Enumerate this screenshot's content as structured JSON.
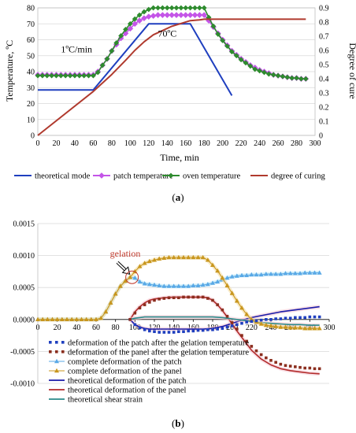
{
  "chart_data": [
    {
      "panel_label_pre": "(",
      "panel_label_letter": "a",
      "panel_label_post": ")",
      "type": "line",
      "xlabel": "Time, min",
      "ylabel": "Temperature, ºC",
      "y2label": "Degree of cure",
      "xlim": [
        0,
        300
      ],
      "ylim": [
        0,
        80
      ],
      "y2lim": [
        0,
        0.9
      ],
      "xticks": [
        0,
        20,
        40,
        60,
        80,
        100,
        120,
        140,
        160,
        180,
        200,
        220,
        240,
        260,
        280,
        300
      ],
      "yticks": [
        0,
        10,
        20,
        30,
        40,
        50,
        60,
        70,
        80
      ],
      "y2ticks": [
        0,
        0.1,
        0.2,
        0.3,
        0.4,
        0.5,
        0.6,
        0.7,
        0.8,
        0.9
      ],
      "grid": "horizontal",
      "legend_position": "bottom",
      "annotations": [
        {
          "text": "1ºC/min",
          "x": 25,
          "y": 52
        },
        {
          "text": "70ºC",
          "x": 130,
          "y": 62
        }
      ],
      "series": [
        {
          "name": "theoretical mode",
          "axis": "left",
          "color": "#1f3fbf",
          "marker": "none",
          "x": [
            0,
            60,
            120,
            165,
            210
          ],
          "y": [
            28.5,
            28.5,
            70,
            70,
            25
          ]
        },
        {
          "name": "patch temperature",
          "axis": "left",
          "color": "#c455e8",
          "marker": "diamond",
          "x": [
            0,
            5,
            10,
            15,
            20,
            25,
            30,
            35,
            40,
            45,
            50,
            55,
            60,
            65,
            70,
            75,
            80,
            85,
            90,
            95,
            100,
            105,
            110,
            115,
            120,
            125,
            130,
            135,
            140,
            145,
            150,
            155,
            160,
            165,
            170,
            175,
            180,
            185,
            190,
            195,
            200,
            205,
            210,
            215,
            220,
            225,
            230,
            235,
            240,
            245,
            250,
            255,
            260,
            265,
            270,
            275,
            280,
            285,
            290
          ],
          "y": [
            38,
            38,
            38,
            38,
            38,
            38,
            38,
            38,
            38,
            38,
            38,
            38,
            38,
            40,
            44,
            48,
            53,
            57,
            61,
            64,
            67,
            70,
            72,
            73.5,
            74.5,
            75,
            75.5,
            75.5,
            75.5,
            75.5,
            75.5,
            75.5,
            75.5,
            75.5,
            75.5,
            75.5,
            75.5,
            72,
            68,
            64,
            60,
            56.5,
            53,
            50.5,
            48,
            46,
            44,
            42.5,
            41,
            40,
            39,
            38,
            37.5,
            37,
            36.5,
            36,
            36,
            35.5,
            35.5
          ]
        },
        {
          "name": "oven temperature",
          "axis": "left",
          "color": "#2e8b2e",
          "marker": "circle",
          "x": [
            0,
            5,
            10,
            15,
            20,
            25,
            30,
            35,
            40,
            45,
            50,
            55,
            60,
            65,
            70,
            75,
            80,
            85,
            90,
            95,
            100,
            105,
            110,
            115,
            120,
            125,
            130,
            135,
            140,
            145,
            150,
            155,
            160,
            165,
            170,
            175,
            180,
            185,
            190,
            195,
            200,
            205,
            210,
            215,
            220,
            225,
            230,
            235,
            240,
            245,
            250,
            255,
            260,
            265,
            270,
            275,
            280,
            285,
            290
          ],
          "y": [
            37.5,
            37.5,
            37.5,
            37.5,
            37.5,
            37.5,
            37.5,
            37.5,
            37.5,
            37.5,
            37.5,
            37.5,
            37.5,
            39.5,
            44,
            48,
            53,
            58,
            62.5,
            66.5,
            70,
            73,
            75.5,
            77.5,
            79,
            80,
            80,
            80,
            80,
            80,
            80,
            80,
            80,
            80,
            80,
            80,
            80,
            74,
            68.5,
            63.5,
            59.5,
            56,
            52.5,
            50,
            47.5,
            45.5,
            43.5,
            41.5,
            40.5,
            39.5,
            38.5,
            38,
            37.5,
            37,
            36.5,
            36,
            36,
            35.5,
            35.5
          ]
        },
        {
          "name": "degree of curing",
          "axis": "right",
          "color": "#b03a2e",
          "marker": "none",
          "x": [
            0,
            60,
            80,
            95,
            105,
            115,
            125,
            135,
            145,
            155,
            165,
            175,
            180,
            240,
            290
          ],
          "y": [
            0,
            0.31,
            0.43,
            0.53,
            0.6,
            0.66,
            0.71,
            0.74,
            0.77,
            0.79,
            0.81,
            0.815,
            0.82,
            0.82,
            0.82
          ]
        }
      ]
    },
    {
      "panel_label_pre": "(",
      "panel_label_letter": "b",
      "panel_label_post": ")",
      "type": "line",
      "xlabel": "",
      "ylabel": "",
      "xlim": [
        0,
        300
      ],
      "ylim": [
        -0.001,
        0.0015
      ],
      "xticks": [
        0,
        20,
        40,
        60,
        80,
        100,
        120,
        140,
        160,
        180,
        200,
        220,
        240,
        260,
        280,
        300
      ],
      "yticks": [
        "-0.0010",
        "-0.0005",
        "0.0000",
        "0.0005",
        "0.0010",
        "0.0015"
      ],
      "ytick_values": [
        -0.001,
        -0.0005,
        0,
        0.0005,
        0.001,
        0.0015
      ],
      "grid": "horizontal",
      "legend_position": "bottom",
      "annotations": [
        {
          "text": "gelation",
          "x": 90,
          "y": 0.00098,
          "color": "#c0392b"
        }
      ],
      "series": [
        {
          "name": "deformation of the patch after the gelation temperature",
          "color": "#1f3fbf",
          "marker": "square",
          "x": [
            95,
            100,
            105,
            110,
            115,
            120,
            125,
            130,
            135,
            140,
            145,
            150,
            155,
            160,
            165,
            170,
            175,
            180,
            185,
            190,
            195,
            200,
            205,
            210,
            215,
            220,
            225,
            230,
            235,
            240,
            245,
            250,
            255,
            260,
            265,
            270,
            275,
            280,
            285,
            290
          ],
          "y": [
            0,
            -8e-05,
            -0.00013,
            -0.00016,
            -0.00018,
            -0.00019,
            -0.0002,
            -0.0002,
            -0.0002,
            -0.0002,
            -0.00019,
            -0.00019,
            -0.00018,
            -0.00018,
            -0.00017,
            -0.00017,
            -0.00016,
            -0.00016,
            -0.00015,
            -0.00014,
            -0.00012,
            -0.0001,
            -8e-05,
            -6e-05,
            -4e-05,
            -3e-05,
            -2e-05,
            -1e-05,
            0,
            0,
            1e-05,
            1e-05,
            2e-05,
            2e-05,
            3e-05,
            3e-05,
            3e-05,
            4e-05,
            4e-05,
            4e-05
          ]
        },
        {
          "name": "deformation of the panel after the gelation temperature",
          "color": "#8b2e1e",
          "marker": "square",
          "x": [
            95,
            100,
            105,
            110,
            115,
            120,
            125,
            130,
            135,
            140,
            145,
            150,
            155,
            160,
            165,
            170,
            175,
            180,
            185,
            190,
            195,
            200,
            205,
            210,
            215,
            220,
            225,
            230,
            235,
            240,
            245,
            250,
            255,
            260,
            265,
            270,
            275,
            280,
            285,
            290
          ],
          "y": [
            0,
            0.0001,
            0.00018,
            0.00023,
            0.00027,
            0.0003,
            0.00032,
            0.00033,
            0.00034,
            0.00034,
            0.00034,
            0.00035,
            0.00035,
            0.00035,
            0.00035,
            0.00035,
            0.00033,
            0.0003,
            0.00023,
            0.00015,
            5e-05,
            -5e-05,
            -0.00015,
            -0.00025,
            -0.00034,
            -0.00042,
            -0.00049,
            -0.00055,
            -0.0006,
            -0.00064,
            -0.00067,
            -0.0007,
            -0.00072,
            -0.00073,
            -0.00074,
            -0.00075,
            -0.00076,
            -0.00076,
            -0.00077,
            -0.00077
          ]
        },
        {
          "name": "complete deformation of the patch",
          "color": "#5aa9e6",
          "marker": "triangle",
          "x": [
            0,
            5,
            10,
            15,
            20,
            25,
            30,
            35,
            40,
            45,
            50,
            55,
            60,
            65,
            70,
            75,
            80,
            85,
            90,
            95,
            100,
            105,
            110,
            115,
            120,
            125,
            130,
            135,
            140,
            145,
            150,
            155,
            160,
            165,
            170,
            175,
            180,
            185,
            190,
            195,
            200,
            205,
            210,
            215,
            220,
            225,
            230,
            235,
            240,
            245,
            250,
            255,
            260,
            265,
            270,
            275,
            280,
            285,
            290
          ],
          "y": [
            0,
            0,
            0,
            0,
            0,
            0,
            0,
            0,
            0,
            0,
            0,
            0,
            0,
            2e-05,
            0.00012,
            0.00026,
            0.0004,
            0.00052,
            0.0006,
            0.00066,
            0.00065,
            0.00059,
            0.00056,
            0.00055,
            0.00054,
            0.00053,
            0.00052,
            0.00052,
            0.00052,
            0.00052,
            0.00052,
            0.00052,
            0.00053,
            0.00053,
            0.00054,
            0.00055,
            0.00057,
            0.00059,
            0.00062,
            0.00065,
            0.00067,
            0.00068,
            0.00069,
            0.00069,
            0.0007,
            0.0007,
            0.0007,
            0.00071,
            0.00071,
            0.00071,
            0.00071,
            0.00072,
            0.00072,
            0.00072,
            0.00072,
            0.00073,
            0.00073,
            0.00073,
            0.00073
          ]
        },
        {
          "name": "complete deformation of the panel",
          "color": "#c8961e",
          "marker": "triangle",
          "x": [
            0,
            5,
            10,
            15,
            20,
            25,
            30,
            35,
            40,
            45,
            50,
            55,
            60,
            65,
            70,
            75,
            80,
            85,
            90,
            95,
            100,
            105,
            110,
            115,
            120,
            125,
            130,
            135,
            140,
            145,
            150,
            155,
            160,
            165,
            170,
            175,
            180,
            185,
            190,
            195,
            200,
            205,
            210,
            215,
            220,
            225,
            230,
            235,
            240,
            245,
            250,
            255,
            260,
            265,
            270,
            275,
            280,
            285,
            290
          ],
          "y": [
            0,
            0,
            0,
            0,
            0,
            0,
            0,
            0,
            0,
            0,
            0,
            0,
            0,
            2e-05,
            0.00012,
            0.00026,
            0.0004,
            0.00052,
            0.0006,
            0.00066,
            0.00075,
            0.00083,
            0.00088,
            0.00091,
            0.00093,
            0.00095,
            0.00096,
            0.00097,
            0.00097,
            0.00097,
            0.00097,
            0.00097,
            0.00097,
            0.00097,
            0.00097,
            0.00093,
            0.00085,
            0.00076,
            0.00065,
            0.00053,
            0.00041,
            0.00029,
            0.00018,
            8e-05,
            0,
            -4e-05,
            -7e-05,
            -9e-05,
            -0.0001,
            -0.00011,
            -0.00012,
            -0.00012,
            -0.00013,
            -0.00013,
            -0.00013,
            -0.00014,
            -0.00014,
            -0.00014,
            -0.00014
          ]
        },
        {
          "name": "theoretical deformation of the patch",
          "color": "#1a1aa8",
          "marker": "none",
          "x": [
            95,
            100,
            105,
            110,
            115,
            120,
            130,
            140,
            150,
            160,
            170,
            180,
            190,
            200,
            210,
            220,
            230,
            240,
            250,
            260,
            270,
            280,
            290
          ],
          "y": [
            0,
            -8e-05,
            -0.00012,
            -0.00014,
            -0.00015,
            -0.00015,
            -0.00015,
            -0.00015,
            -0.00015,
            -0.00015,
            -0.00015,
            -0.00014,
            -0.00011,
            -6e-05,
            -1e-05,
            3e-05,
            6e-05,
            9e-05,
            0.00012,
            0.00014,
            0.00016,
            0.00018,
            0.0002
          ]
        },
        {
          "name": "theoretical deformation of the panel",
          "color": "#b22a2a",
          "marker": "none",
          "x": [
            95,
            100,
            105,
            110,
            115,
            120,
            130,
            140,
            150,
            160,
            170,
            175,
            180,
            185,
            190,
            195,
            200,
            205,
            210,
            215,
            220,
            230,
            240,
            250,
            260,
            270,
            280,
            290
          ],
          "y": [
            0,
            0.00012,
            0.0002,
            0.00026,
            0.0003,
            0.00032,
            0.00034,
            0.00035,
            0.00035,
            0.00035,
            0.00035,
            0.00034,
            0.0003,
            0.00023,
            0.00014,
            4e-05,
            -7e-05,
            -0.00018,
            -0.00028,
            -0.00038,
            -0.00048,
            -0.00062,
            -0.00071,
            -0.00077,
            -0.0008,
            -0.00082,
            -0.00084,
            -0.00085
          ]
        },
        {
          "name": "theoretical shear strain",
          "color": "#2a8a8a",
          "marker": "none",
          "x": [
            95,
            100,
            105,
            110,
            120,
            130,
            140,
            150,
            160,
            170,
            180,
            190,
            200,
            210,
            220,
            230,
            240,
            250,
            260,
            270,
            280,
            290
          ],
          "y": [
            0,
            2e-05,
            3e-05,
            4e-05,
            4e-05,
            4e-05,
            4e-05,
            4e-05,
            4e-05,
            4e-05,
            4e-05,
            3e-05,
            1e-05,
            -1e-05,
            -3e-05,
            -5e-05,
            -6e-05,
            -7e-05,
            -8e-05,
            -8e-05,
            -9e-05,
            -9e-05
          ]
        }
      ]
    }
  ]
}
